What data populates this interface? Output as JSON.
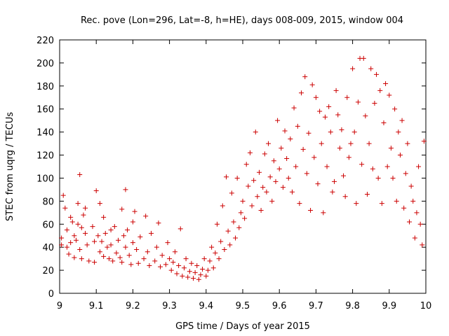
{
  "chart_data": {
    "type": "scatter",
    "title": "Rec. pove (Lon=296, Lat=-8, h=HE), days 008-009, 2015, window 004",
    "xlabel": "GPS time / Days of year 2015",
    "ylabel": "STEC from uqrg / TECUs",
    "xlim": [
      9.0,
      10.0
    ],
    "ylim": [
      0,
      220
    ],
    "x_ticks": [
      {
        "value": 9.0,
        "label": "9"
      },
      {
        "value": 9.1,
        "label": "9.1"
      },
      {
        "value": 9.2,
        "label": "9.2"
      },
      {
        "value": 9.3,
        "label": "9.3"
      },
      {
        "value": 9.4,
        "label": "9.4"
      },
      {
        "value": 9.5,
        "label": "9.5"
      },
      {
        "value": 9.6,
        "label": "9.6"
      },
      {
        "value": 9.7,
        "label": "9.7"
      },
      {
        "value": 9.8,
        "label": "9.8"
      },
      {
        "value": 9.9,
        "label": "9.9"
      },
      {
        "value": 10.0,
        "label": "10"
      }
    ],
    "y_ticks": [
      {
        "value": 0,
        "label": "0"
      },
      {
        "value": 20,
        "label": "20"
      },
      {
        "value": 40,
        "label": "40"
      },
      {
        "value": 60,
        "label": "60"
      },
      {
        "value": 80,
        "label": "80"
      },
      {
        "value": 100,
        "label": "100"
      },
      {
        "value": 120,
        "label": "120"
      },
      {
        "value": 140,
        "label": "140"
      },
      {
        "value": 160,
        "label": "160"
      },
      {
        "value": 180,
        "label": "180"
      },
      {
        "value": 200,
        "label": "200"
      },
      {
        "value": 220,
        "label": "220"
      }
    ],
    "grid": false,
    "marker": "+",
    "marker_color": "#cc0000",
    "series": [
      {
        "name": "STEC",
        "points": [
          [
            9.005,
            48
          ],
          [
            9.005,
            42
          ],
          [
            9.01,
            85
          ],
          [
            9.015,
            74
          ],
          [
            9.02,
            55
          ],
          [
            9.02,
            40
          ],
          [
            9.025,
            34
          ],
          [
            9.03,
            66
          ],
          [
            9.03,
            44
          ],
          [
            9.035,
            62
          ],
          [
            9.04,
            31
          ],
          [
            9.04,
            50
          ],
          [
            9.045,
            46
          ],
          [
            9.05,
            78
          ],
          [
            9.05,
            60
          ],
          [
            9.055,
            103
          ],
          [
            9.055,
            38
          ],
          [
            9.06,
            57
          ],
          [
            9.06,
            30
          ],
          [
            9.065,
            68
          ],
          [
            9.07,
            74
          ],
          [
            9.07,
            52
          ],
          [
            9.075,
            42
          ],
          [
            9.08,
            28
          ],
          [
            9.09,
            58
          ],
          [
            9.095,
            27
          ],
          [
            9.095,
            45
          ],
          [
            9.1,
            89
          ],
          [
            9.105,
            50
          ],
          [
            9.11,
            78
          ],
          [
            9.11,
            36
          ],
          [
            9.115,
            45
          ],
          [
            9.12,
            66
          ],
          [
            9.12,
            32
          ],
          [
            9.125,
            52
          ],
          [
            9.13,
            40
          ],
          [
            9.135,
            30
          ],
          [
            9.14,
            55
          ],
          [
            9.14,
            42
          ],
          [
            9.145,
            28
          ],
          [
            9.15,
            58
          ],
          [
            9.155,
            35
          ],
          [
            9.16,
            46
          ],
          [
            9.165,
            31
          ],
          [
            9.17,
            73
          ],
          [
            9.17,
            27
          ],
          [
            9.175,
            50
          ],
          [
            9.18,
            90
          ],
          [
            9.18,
            40
          ],
          [
            9.185,
            55
          ],
          [
            9.19,
            33
          ],
          [
            9.195,
            25
          ],
          [
            9.2,
            62
          ],
          [
            9.2,
            44
          ],
          [
            9.205,
            71
          ],
          [
            9.21,
            38
          ],
          [
            9.215,
            26
          ],
          [
            9.22,
            49
          ],
          [
            9.23,
            30
          ],
          [
            9.235,
            67
          ],
          [
            9.24,
            36
          ],
          [
            9.245,
            24
          ],
          [
            9.25,
            52
          ],
          [
            9.26,
            28
          ],
          [
            9.265,
            40
          ],
          [
            9.27,
            61
          ],
          [
            9.275,
            23
          ],
          [
            9.28,
            33
          ],
          [
            9.29,
            25
          ],
          [
            9.295,
            44
          ],
          [
            9.3,
            30
          ],
          [
            9.305,
            20
          ],
          [
            9.31,
            27
          ],
          [
            9.315,
            36
          ],
          [
            9.32,
            17
          ],
          [
            9.325,
            24
          ],
          [
            9.33,
            56
          ],
          [
            9.335,
            15
          ],
          [
            9.34,
            22
          ],
          [
            9.345,
            30
          ],
          [
            9.35,
            14
          ],
          [
            9.355,
            19
          ],
          [
            9.36,
            26
          ],
          [
            9.365,
            13
          ],
          [
            9.37,
            18
          ],
          [
            9.375,
            24
          ],
          [
            9.38,
            12
          ],
          [
            9.385,
            16
          ],
          [
            9.39,
            21
          ],
          [
            9.395,
            30
          ],
          [
            9.4,
            15
          ],
          [
            9.405,
            20
          ],
          [
            9.41,
            28
          ],
          [
            9.415,
            40
          ],
          [
            9.42,
            22
          ],
          [
            9.425,
            35
          ],
          [
            9.43,
            60
          ],
          [
            9.435,
            30
          ],
          [
            9.44,
            45
          ],
          [
            9.445,
            76
          ],
          [
            9.45,
            38
          ],
          [
            9.455,
            101
          ],
          [
            9.46,
            54
          ],
          [
            9.465,
            42
          ],
          [
            9.47,
            87
          ],
          [
            9.475,
            62
          ],
          [
            9.48,
            48
          ],
          [
            9.485,
            100
          ],
          [
            9.49,
            57
          ],
          [
            9.495,
            70
          ],
          [
            9.5,
            80
          ],
          [
            9.505,
            65
          ],
          [
            9.51,
            112
          ],
          [
            9.515,
            93
          ],
          [
            9.52,
            122
          ],
          [
            9.525,
            76
          ],
          [
            9.53,
            98
          ],
          [
            9.535,
            140
          ],
          [
            9.54,
            84
          ],
          [
            9.545,
            105
          ],
          [
            9.55,
            72
          ],
          [
            9.555,
            92
          ],
          [
            9.56,
            121
          ],
          [
            9.565,
            88
          ],
          [
            9.57,
            130
          ],
          [
            9.575,
            101
          ],
          [
            9.58,
            80
          ],
          [
            9.585,
            115
          ],
          [
            9.59,
            97
          ],
          [
            9.595,
            150
          ],
          [
            9.6,
            108
          ],
          [
            9.605,
            126
          ],
          [
            9.61,
            92
          ],
          [
            9.615,
            141
          ],
          [
            9.62,
            117
          ],
          [
            9.625,
            100
          ],
          [
            9.63,
            134
          ],
          [
            9.635,
            88
          ],
          [
            9.64,
            161
          ],
          [
            9.645,
            110
          ],
          [
            9.65,
            145
          ],
          [
            9.655,
            78
          ],
          [
            9.66,
            174
          ],
          [
            9.665,
            125
          ],
          [
            9.67,
            188
          ],
          [
            9.675,
            104
          ],
          [
            9.68,
            139
          ],
          [
            9.685,
            72
          ],
          [
            9.69,
            181
          ],
          [
            9.695,
            118
          ],
          [
            9.7,
            170
          ],
          [
            9.705,
            95
          ],
          [
            9.71,
            158
          ],
          [
            9.715,
            130
          ],
          [
            9.72,
            70
          ],
          [
            9.725,
            153
          ],
          [
            9.73,
            110
          ],
          [
            9.735,
            162
          ],
          [
            9.74,
            140
          ],
          [
            9.745,
            88
          ],
          [
            9.75,
            97
          ],
          [
            9.755,
            176
          ],
          [
            9.76,
            155
          ],
          [
            9.765,
            126
          ],
          [
            9.77,
            142
          ],
          [
            9.775,
            102
          ],
          [
            9.78,
            84
          ],
          [
            9.785,
            170
          ],
          [
            9.79,
            118
          ],
          [
            9.795,
            130
          ],
          [
            9.8,
            195
          ],
          [
            9.805,
            140
          ],
          [
            9.81,
            78
          ],
          [
            9.815,
            166
          ],
          [
            9.82,
            204
          ],
          [
            9.825,
            112
          ],
          [
            9.83,
            204
          ],
          [
            9.835,
            154
          ],
          [
            9.84,
            86
          ],
          [
            9.845,
            130
          ],
          [
            9.85,
            195
          ],
          [
            9.855,
            108
          ],
          [
            9.86,
            165
          ],
          [
            9.865,
            190
          ],
          [
            9.87,
            100
          ],
          [
            9.875,
            176
          ],
          [
            9.88,
            78
          ],
          [
            9.885,
            148
          ],
          [
            9.89,
            182
          ],
          [
            9.895,
            110
          ],
          [
            9.9,
            172
          ],
          [
            9.905,
            126
          ],
          [
            9.91,
            100
          ],
          [
            9.915,
            160
          ],
          [
            9.92,
            80
          ],
          [
            9.925,
            140
          ],
          [
            9.93,
            120
          ],
          [
            9.935,
            150
          ],
          [
            9.94,
            74
          ],
          [
            9.945,
            104
          ],
          [
            9.95,
            130
          ],
          [
            9.955,
            62
          ],
          [
            9.96,
            93
          ],
          [
            9.965,
            80
          ],
          [
            9.97,
            48
          ],
          [
            9.975,
            70
          ],
          [
            9.98,
            110
          ],
          [
            9.985,
            60
          ],
          [
            9.99,
            42
          ],
          [
            9.995,
            132
          ]
        ]
      }
    ]
  }
}
